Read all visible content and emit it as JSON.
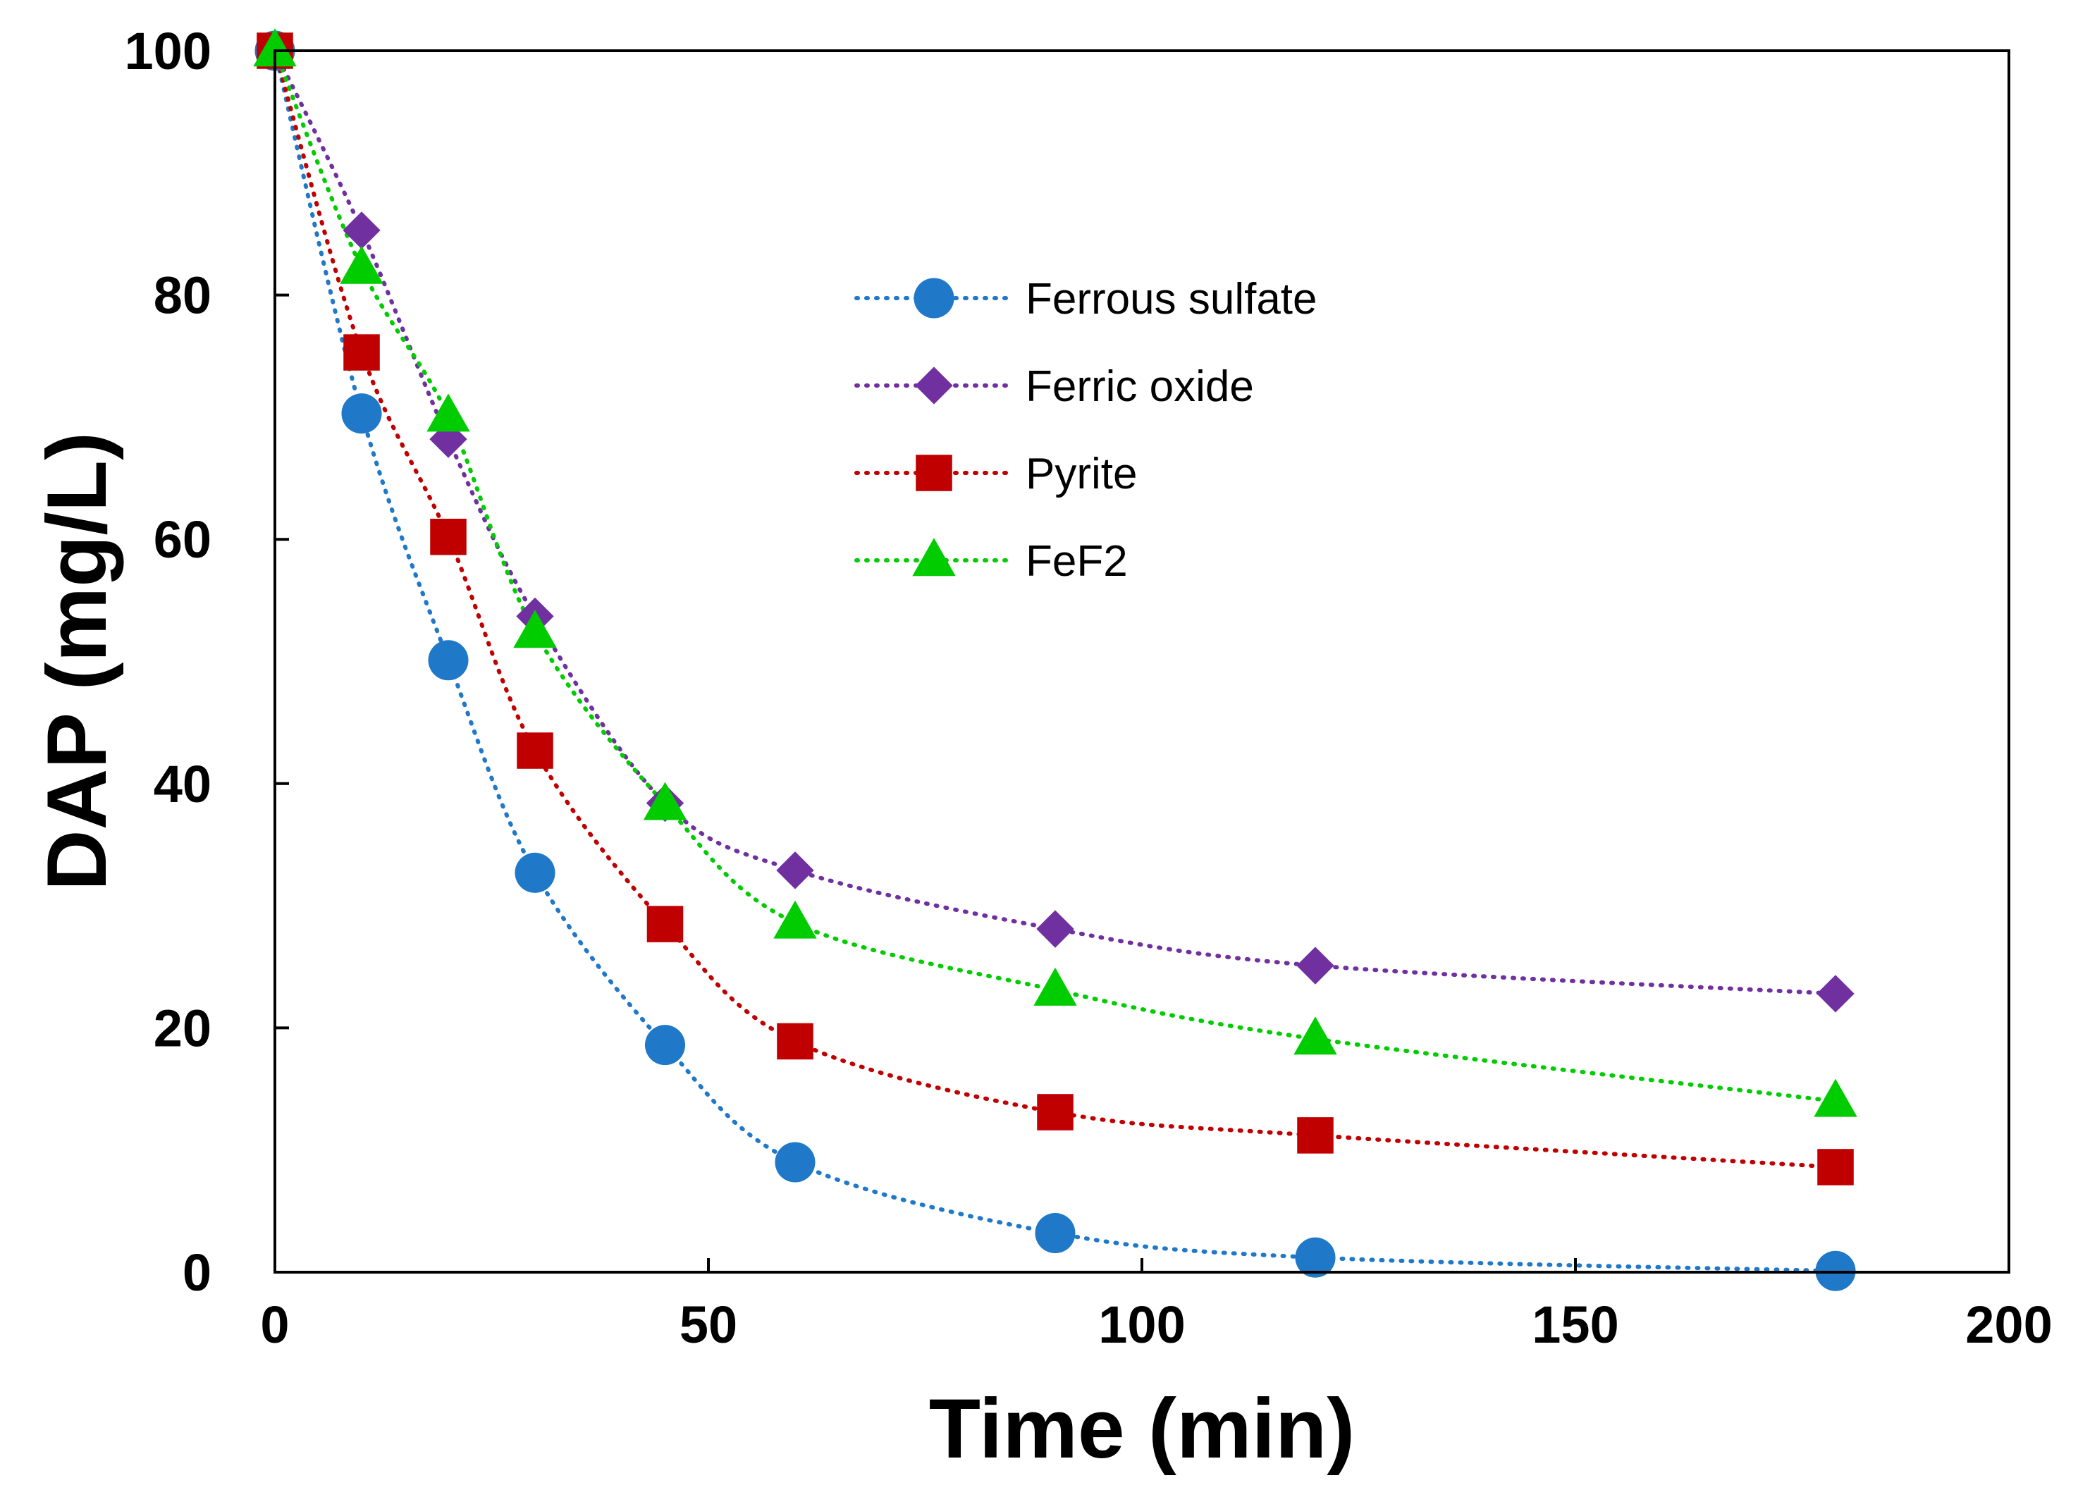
{
  "chart_data": {
    "type": "scatter",
    "title": "",
    "xlabel": "Time (min)",
    "ylabel": "DAP (mg/L)",
    "xlim": [
      0,
      200
    ],
    "ylim": [
      0,
      100
    ],
    "xticks": [
      0,
      50,
      100,
      150,
      200
    ],
    "yticks": [
      0,
      20,
      40,
      60,
      80,
      100
    ],
    "xtick_labels": [
      "0",
      "50",
      "100",
      "150",
      "200"
    ],
    "ytick_labels": [
      "0",
      "20",
      "40",
      "60",
      "80",
      "100"
    ],
    "grid": false,
    "legend_position": "upper-center",
    "line_style": "dotted",
    "series": [
      {
        "name": "Ferrous sulfate",
        "marker": "circle",
        "color": "#1f78c8",
        "x": [
          0,
          10,
          20,
          30,
          45,
          60,
          90,
          120,
          180
        ],
        "y": [
          100,
          70.3,
          50.1,
          32.7,
          18.6,
          9.0,
          3.2,
          1.2,
          0.1
        ]
      },
      {
        "name": "Ferric oxide",
        "marker": "diamond",
        "color": "#7030a0",
        "x": [
          0,
          10,
          20,
          30,
          45,
          60,
          90,
          120,
          180
        ],
        "y": [
          100,
          85.3,
          68.2,
          53.7,
          38.4,
          32.9,
          28.1,
          25.1,
          22.8
        ]
      },
      {
        "name": "Pyrite",
        "marker": "square",
        "color": "#c00000",
        "x": [
          0,
          10,
          20,
          30,
          45,
          60,
          90,
          120,
          180
        ],
        "y": [
          100,
          75.3,
          60.2,
          42.7,
          28.5,
          18.9,
          13.1,
          11.2,
          8.6
        ]
      },
      {
        "name": "FeF2",
        "marker": "triangle",
        "color": "#00cc00",
        "x": [
          0,
          10,
          20,
          30,
          45,
          60,
          90,
          120,
          180
        ],
        "y": [
          100,
          82.2,
          70.1,
          52.4,
          38.3,
          28.6,
          23.1,
          19.1,
          14.0
        ]
      }
    ]
  }
}
